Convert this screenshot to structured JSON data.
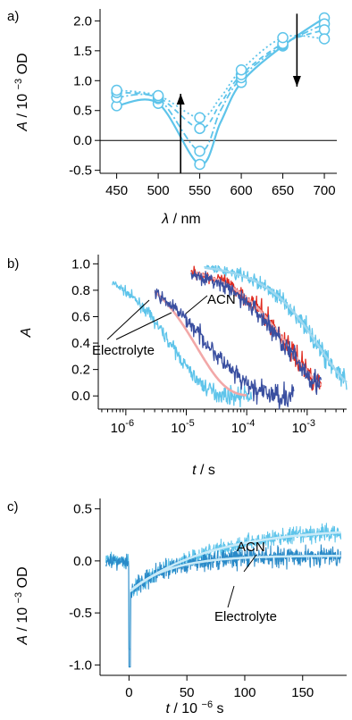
{
  "chart_data": [
    {
      "panel": "a)",
      "type": "line",
      "xlabel_sym": "λ",
      "xlabel_unit": "/ nm",
      "ylabel_sym": "A",
      "ylabel_unit_pre": "/ 10",
      "ylabel_exp": "−3",
      "ylabel_unit_post": " OD",
      "xlim": [
        430,
        715
      ],
      "ylim": [
        -0.55,
        2.2
      ],
      "xticks": [
        450,
        500,
        550,
        600,
        650,
        700
      ],
      "yticks": [
        -0.5,
        0.0,
        0.5,
        1.0,
        1.5,
        2.0
      ],
      "xtick_labels": [
        "450",
        "500",
        "550",
        "600",
        "650",
        "700"
      ],
      "ytick_labels": [
        "-0.5",
        "0.0",
        "0.5",
        "1.0",
        "1.5",
        "2.0"
      ],
      "zero_line": true,
      "color": "#5ec4ea",
      "series": [
        {
          "x": [
            450,
            500,
            550,
            575,
            600,
            650,
            700
          ],
          "values": [
            0.58,
            0.62,
            -0.4,
            0.3,
            0.97,
            1.58,
            2.05
          ],
          "style": "solid"
        },
        {
          "x": [
            450,
            500,
            550,
            575,
            600,
            650,
            700
          ],
          "values": [
            0.72,
            0.7,
            -0.18,
            0.5,
            1.05,
            1.6,
            1.95
          ],
          "style": "dashdot"
        },
        {
          "x": [
            450,
            500,
            550,
            575,
            600,
            650,
            700
          ],
          "values": [
            0.8,
            0.72,
            0.2,
            0.62,
            1.1,
            1.62,
            1.85
          ],
          "style": "dashed"
        },
        {
          "x": [
            450,
            500,
            550,
            575,
            600,
            650,
            700
          ],
          "values": [
            0.84,
            0.75,
            0.38,
            0.72,
            1.18,
            1.72,
            1.7
          ],
          "style": "dotted"
        }
      ],
      "arrows": [
        {
          "x": 527,
          "from": -0.55,
          "to": 0.78
        },
        {
          "x": 667,
          "from": 2.12,
          "to": 0.9
        }
      ]
    },
    {
      "panel": "b)",
      "type": "line",
      "xscale": "log",
      "xlabel_sym": "t",
      "xlabel_unit": "/ s",
      "ylabel_sym": "A",
      "xlim": [
        3.5e-07,
        0.0045
      ],
      "ylim": [
        -0.1,
        1.07
      ],
      "xticks": [
        1e-06,
        1e-05,
        0.0001,
        0.001
      ],
      "xtick_base": [
        "10",
        "10",
        "10",
        "10"
      ],
      "xtick_exp": [
        "-6",
        "-5",
        "-4",
        "-3"
      ],
      "yticks": [
        0.0,
        0.2,
        0.4,
        0.6,
        0.8,
        1.0
      ],
      "ytick_labels": [
        "0.0",
        "0.2",
        "0.4",
        "0.6",
        "0.8",
        "1.0"
      ],
      "annotations": [
        "ACN",
        "Electrolyte"
      ],
      "series": [
        {
          "color": "#5ec4ea",
          "noisy": true,
          "x_start": 6e-07,
          "x_end": 0.00012,
          "tau": 6e-06,
          "beta": 0.8,
          "noise": 0.05
        },
        {
          "color": "#f2a8a8",
          "noisy": false,
          "x_start": 3e-06,
          "x_end": 0.0001,
          "tau": 1.5e-05,
          "beta": 0.9,
          "noise": 0
        },
        {
          "color": "#3a4fa0",
          "noisy": true,
          "x_start": 3e-06,
          "x_end": 0.0006,
          "tau": 2.5e-05,
          "beta": 0.65,
          "noise": 0.07
        },
        {
          "color": "#e02b20",
          "noisy": true,
          "x_start": 1.2e-05,
          "x_end": 0.0017,
          "tau": 0.0005,
          "beta": 0.75,
          "noise": 0.07
        },
        {
          "color": "#f2a8a8",
          "noisy": false,
          "x_start": 1.5e-05,
          "x_end": 0.0017,
          "tau": 0.0005,
          "beta": 0.75,
          "noise": 0
        },
        {
          "color": "#3a4fa0",
          "noisy": true,
          "x_start": 1.2e-05,
          "x_end": 0.0017,
          "tau": 0.00045,
          "beta": 0.7,
          "noise": 0.07
        },
        {
          "color": "#5ec4ea",
          "noisy": true,
          "x_start": 2e-05,
          "x_end": 0.0045,
          "tau": 0.0016,
          "beta": 0.8,
          "noise": 0.06
        },
        {
          "color": "#9ed8f0",
          "noisy": false,
          "x_start": 2e-05,
          "x_end": 0.0045,
          "tau": 0.0016,
          "beta": 0.8,
          "noise": 0
        }
      ]
    },
    {
      "panel": "c)",
      "type": "line",
      "xlabel_sym": "t",
      "xlabel_unit_pre": "/ 10",
      "xlabel_exp": "−6",
      "xlabel_unit_post": " s",
      "ylabel_sym": "A",
      "ylabel_unit_pre": "/ 10",
      "ylabel_exp": "−3",
      "ylabel_unit_post": " OD",
      "xlim": [
        -25,
        188
      ],
      "ylim": [
        -1.1,
        0.6
      ],
      "xticks": [
        0,
        50,
        100,
        150
      ],
      "xtick_labels": [
        "0",
        "50",
        "100",
        "150"
      ],
      "yticks": [
        -1.0,
        -0.5,
        0.0,
        0.5
      ],
      "ytick_labels": [
        "-1.0",
        "-0.5",
        "0.0",
        "0.5"
      ],
      "annotations": [
        "ACN",
        "Electrolyte"
      ],
      "series": [
        {
          "color": "#5ec4ea",
          "noisy": true,
          "amp_start": -0.3,
          "amp_end": 0.32,
          "tau": 70,
          "noise": 0.08
        },
        {
          "color": "#2a8ac8",
          "noisy": true,
          "amp_start": -0.3,
          "amp_end": 0.05,
          "tau": 35,
          "noise": 0.09
        },
        {
          "color": "#c8eaf8",
          "noisy": false,
          "amp_start": -0.3,
          "amp_end": 0.32,
          "tau": 70,
          "noise": 0
        },
        {
          "color": "#c8eaf8",
          "noisy": false,
          "amp_start": -0.3,
          "amp_end": 0.05,
          "tau": 35,
          "noise": 0
        }
      ]
    }
  ]
}
